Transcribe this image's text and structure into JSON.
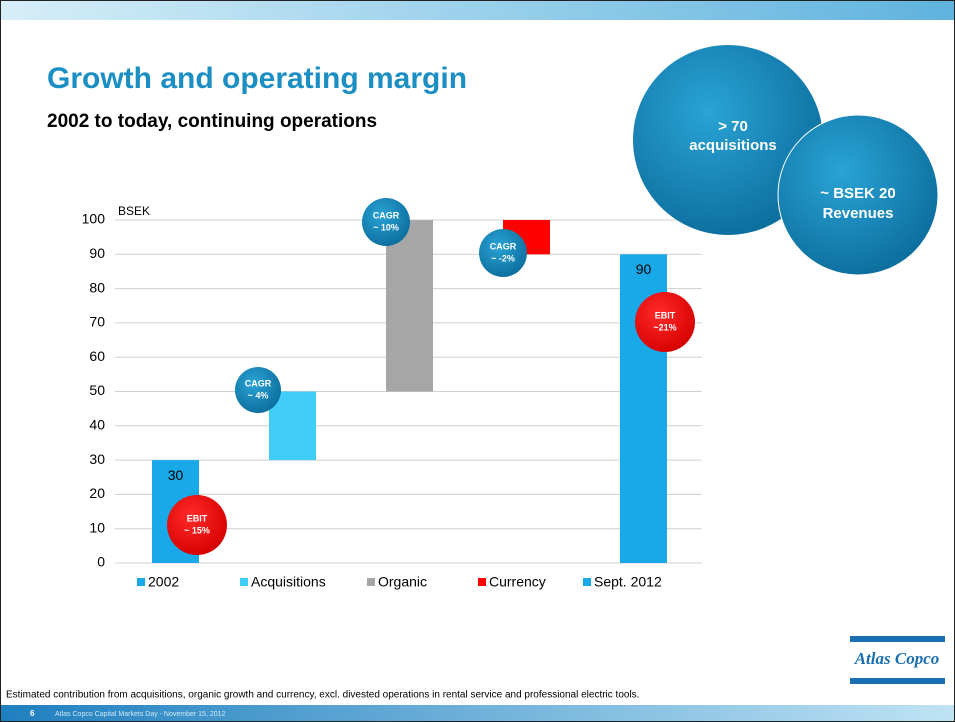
{
  "title": "Growth and operating margin",
  "subtitle": "2002 to today, continuing operations",
  "chart_data": {
    "type": "waterfall",
    "y_unit_label": "BSEK",
    "categories": [
      "2002",
      "Acquisitions",
      "Organic",
      "Currency",
      "Sept. 2012"
    ],
    "values": [
      30,
      20,
      50,
      -10,
      90
    ],
    "measure": [
      "absolute",
      "relative",
      "relative",
      "relative",
      "absolute"
    ],
    "colors": [
      "#1aa9e8",
      "#40cdf7",
      "#a6a6a6",
      "#ff0000",
      "#1aa9e8"
    ],
    "ylim": [
      0,
      100
    ],
    "yticks": [
      0,
      10,
      20,
      30,
      40,
      50,
      60,
      70,
      80,
      90,
      100
    ],
    "grid": true,
    "legend": "bottom"
  },
  "annotations": [
    {
      "lines": [
        "CAGR",
        "~ 4%"
      ]
    },
    {
      "lines": [
        "CAGR",
        "~ 10%"
      ]
    },
    {
      "lines": [
        "CAGR",
        "~ -2%"
      ]
    },
    {
      "lines": [
        "EBIT",
        "~ 15%"
      ]
    },
    {
      "lines": [
        "EBIT",
        "~21%"
      ]
    }
  ],
  "highlights": [
    {
      "lines": [
        "> 70",
        "acquisitions"
      ]
    },
    {
      "lines": [
        "~ BSEK 20",
        "Revenues"
      ]
    }
  ],
  "footnote": "Estimated contribution from acquisitions, organic growth and currency, excl. divested operations in rental service and professional electric tools.",
  "footer": {
    "page": "6",
    "text": "Atlas Copco Capital Markets Day - November 15, 2012"
  },
  "logo": "Atlas Copco"
}
